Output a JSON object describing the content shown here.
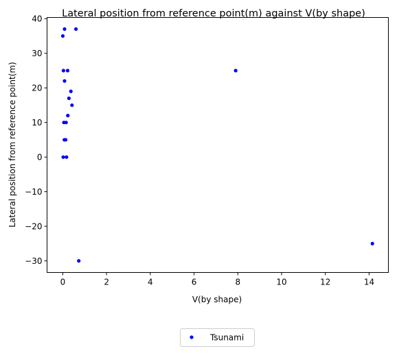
{
  "chart_data": {
    "type": "scatter",
    "title": "Lateral position from reference point(m) against V(by shape)",
    "xlabel": "V(by shape)",
    "ylabel": "Lateral position from reference point(m)",
    "xlim": [
      -0.72,
      14.88
    ],
    "ylim": [
      -33.35,
      40.35
    ],
    "xticks": [
      0,
      2,
      4,
      6,
      8,
      10,
      12,
      14
    ],
    "yticks": [
      -30,
      -20,
      -10,
      0,
      10,
      20,
      30,
      40
    ],
    "grid": false,
    "legend_position": "below",
    "series": [
      {
        "name": "Tsunami",
        "color": "#0000ff",
        "points": [
          {
            "x": 0.08,
            "y": 37
          },
          {
            "x": 0.6,
            "y": 37
          },
          {
            "x": 0.0,
            "y": 35
          },
          {
            "x": 0.03,
            "y": 25
          },
          {
            "x": 0.22,
            "y": 25
          },
          {
            "x": 7.9,
            "y": 25
          },
          {
            "x": 0.08,
            "y": 22
          },
          {
            "x": 0.37,
            "y": 19
          },
          {
            "x": 0.28,
            "y": 17
          },
          {
            "x": 0.42,
            "y": 15
          },
          {
            "x": 0.23,
            "y": 12
          },
          {
            "x": 0.05,
            "y": 10
          },
          {
            "x": 0.15,
            "y": 10
          },
          {
            "x": 0.07,
            "y": 5
          },
          {
            "x": 0.13,
            "y": 5
          },
          {
            "x": 0.02,
            "y": 0
          },
          {
            "x": 0.17,
            "y": 0
          },
          {
            "x": 14.15,
            "y": -25
          },
          {
            "x": 0.73,
            "y": -30
          }
        ]
      }
    ]
  }
}
